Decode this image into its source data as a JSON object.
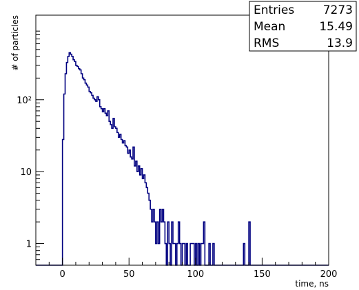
{
  "chart_data": {
    "type": "histogram",
    "xlabel": "time, ns",
    "ylabel": "# of particles",
    "xlim": [
      -20,
      200
    ],
    "ylim": [
      0.5,
      1500
    ],
    "yscale": "log",
    "grid": false,
    "line_color": "#000080",
    "x_ticks": [
      {
        "value": 0,
        "label": "0"
      },
      {
        "value": 50,
        "label": "50"
      },
      {
        "value": 100,
        "label": "100"
      },
      {
        "value": 150,
        "label": "150"
      },
      {
        "value": 200,
        "label": "200"
      }
    ],
    "y_ticks": [
      {
        "value": 1,
        "label": "1"
      },
      {
        "value": 10,
        "label": "10"
      },
      {
        "value": 100,
        "label": "10²"
      }
    ],
    "stats_box": {
      "position": "top-right",
      "rows": [
        {
          "label": "Entries",
          "value": "7273"
        },
        {
          "label": "Mean",
          "value": "15.49"
        },
        {
          "label": "RMS",
          "value": "13.9"
        }
      ]
    },
    "bin_width": 1,
    "bins": [
      [
        -20,
        0
      ],
      [
        -1,
        0
      ],
      [
        0,
        28
      ],
      [
        1,
        120
      ],
      [
        2,
        230
      ],
      [
        3,
        330
      ],
      [
        4,
        400
      ],
      [
        5,
        450
      ],
      [
        6,
        430
      ],
      [
        7,
        400
      ],
      [
        8,
        360
      ],
      [
        9,
        340
      ],
      [
        10,
        300
      ],
      [
        11,
        290
      ],
      [
        12,
        270
      ],
      [
        13,
        260
      ],
      [
        14,
        230
      ],
      [
        15,
        200
      ],
      [
        16,
        190
      ],
      [
        17,
        170
      ],
      [
        18,
        160
      ],
      [
        19,
        150
      ],
      [
        20,
        130
      ],
      [
        21,
        125
      ],
      [
        22,
        115
      ],
      [
        23,
        105
      ],
      [
        24,
        100
      ],
      [
        25,
        95
      ],
      [
        26,
        110
      ],
      [
        27,
        100
      ],
      [
        28,
        80
      ],
      [
        29,
        75
      ],
      [
        30,
        68
      ],
      [
        31,
        75
      ],
      [
        32,
        65
      ],
      [
        33,
        60
      ],
      [
        34,
        70
      ],
      [
        35,
        50
      ],
      [
        36,
        45
      ],
      [
        37,
        40
      ],
      [
        38,
        55
      ],
      [
        39,
        42
      ],
      [
        40,
        40
      ],
      [
        41,
        35
      ],
      [
        42,
        30
      ],
      [
        43,
        33
      ],
      [
        44,
        28
      ],
      [
        45,
        25
      ],
      [
        46,
        27
      ],
      [
        47,
        23
      ],
      [
        48,
        22
      ],
      [
        49,
        18
      ],
      [
        50,
        20
      ],
      [
        51,
        16
      ],
      [
        52,
        15
      ],
      [
        53,
        22
      ],
      [
        54,
        12
      ],
      [
        55,
        14
      ],
      [
        56,
        10
      ],
      [
        57,
        12
      ],
      [
        58,
        9
      ],
      [
        59,
        11
      ],
      [
        60,
        8
      ],
      [
        61,
        9
      ],
      [
        62,
        7
      ],
      [
        63,
        6
      ],
      [
        64,
        5
      ],
      [
        65,
        4
      ],
      [
        66,
        3
      ],
      [
        67,
        2
      ],
      [
        68,
        3
      ],
      [
        69,
        2
      ],
      [
        70,
        1
      ],
      [
        71,
        2
      ],
      [
        72,
        1
      ],
      [
        73,
        3
      ],
      [
        74,
        2
      ],
      [
        75,
        3
      ],
      [
        76,
        2
      ],
      [
        77,
        1
      ],
      [
        78,
        0
      ],
      [
        79,
        2
      ],
      [
        80,
        1
      ],
      [
        81,
        0
      ],
      [
        82,
        2
      ],
      [
        83,
        1
      ],
      [
        84,
        1
      ],
      [
        85,
        0
      ],
      [
        86,
        1
      ],
      [
        87,
        2
      ],
      [
        88,
        1
      ],
      [
        89,
        0
      ],
      [
        90,
        1
      ],
      [
        91,
        1
      ],
      [
        92,
        0
      ],
      [
        93,
        1
      ],
      [
        94,
        0
      ],
      [
        95,
        0
      ],
      [
        96,
        1
      ],
      [
        97,
        1
      ],
      [
        98,
        1
      ],
      [
        99,
        0
      ],
      [
        100,
        1
      ],
      [
        101,
        0
      ],
      [
        102,
        1
      ],
      [
        103,
        0
      ],
      [
        104,
        1
      ],
      [
        105,
        1
      ],
      [
        106,
        2
      ],
      [
        107,
        0
      ],
      [
        108,
        0
      ],
      [
        109,
        0
      ],
      [
        110,
        1
      ],
      [
        111,
        0
      ],
      [
        112,
        0
      ],
      [
        113,
        1
      ],
      [
        114,
        0
      ],
      [
        115,
        0
      ],
      [
        116,
        0
      ],
      [
        117,
        0
      ],
      [
        118,
        0
      ],
      [
        119,
        0
      ],
      [
        120,
        0
      ],
      [
        121,
        0
      ],
      [
        122,
        0
      ],
      [
        123,
        0
      ],
      [
        124,
        0
      ],
      [
        125,
        0
      ],
      [
        126,
        0
      ],
      [
        127,
        0
      ],
      [
        128,
        0
      ],
      [
        129,
        0
      ],
      [
        130,
        0
      ],
      [
        131,
        0
      ],
      [
        132,
        0
      ],
      [
        133,
        0
      ],
      [
        134,
        0
      ],
      [
        135,
        0
      ],
      [
        136,
        1
      ],
      [
        137,
        0
      ],
      [
        138,
        0
      ],
      [
        139,
        0
      ],
      [
        140,
        2
      ],
      [
        141,
        0
      ],
      [
        142,
        0
      ],
      [
        143,
        0
      ],
      [
        144,
        0
      ],
      [
        145,
        0
      ],
      [
        146,
        0
      ],
      [
        147,
        0
      ],
      [
        148,
        0
      ],
      [
        149,
        0
      ],
      [
        150,
        0
      ],
      [
        200,
        0
      ]
    ]
  }
}
